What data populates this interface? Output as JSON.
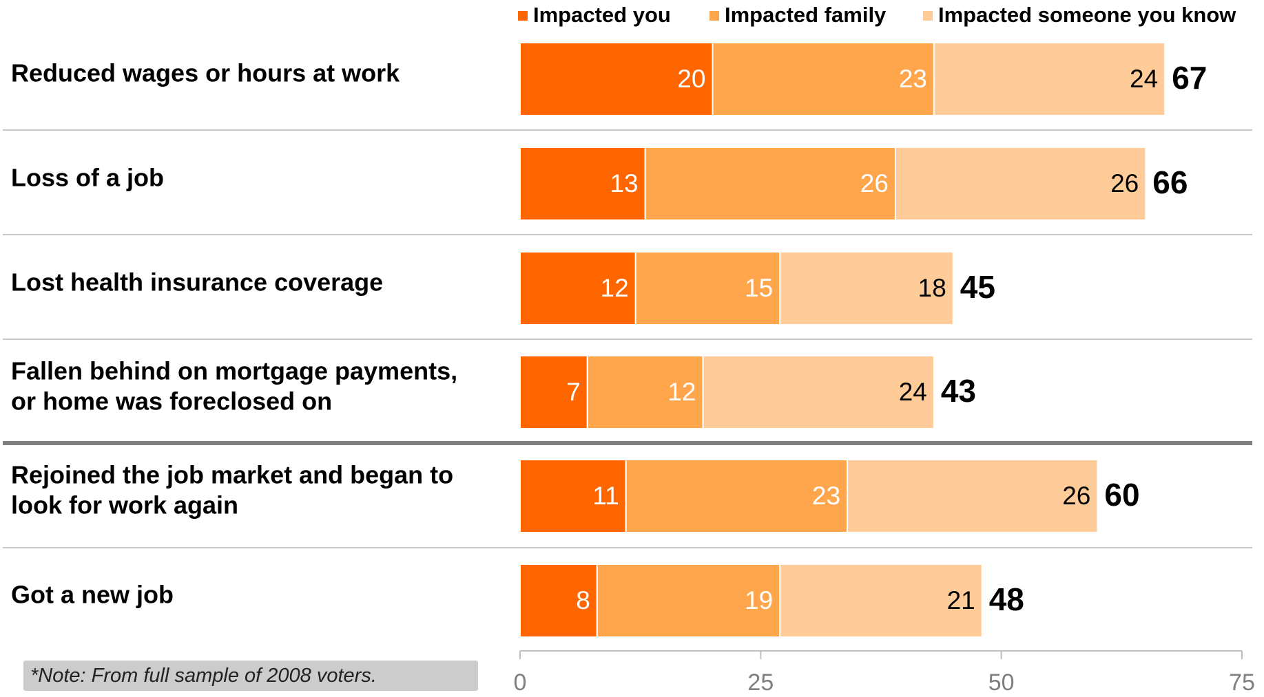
{
  "chart_data": {
    "type": "bar",
    "orientation": "horizontal",
    "stacked": true,
    "categories": [
      "Reduced wages or hours at work",
      "Loss of a job",
      "Lost health insurance coverage",
      "Fallen behind on mortgage payments, or home was foreclosed on",
      "Rejoined the job market and began to look for work again",
      "Got a new job"
    ],
    "category_lines": [
      [
        "Reduced wages or hours at work"
      ],
      [
        "Loss of a job"
      ],
      [
        "Lost health insurance coverage"
      ],
      [
        "Fallen behind on mortgage payments,",
        "or home was foreclosed on"
      ],
      [
        "Rejoined the job market and began to",
        "look for work again"
      ],
      [
        "Got a new job"
      ]
    ],
    "series": [
      {
        "name": "Impacted you",
        "color": "#ff6600",
        "values": [
          20,
          13,
          12,
          7,
          11,
          8
        ]
      },
      {
        "name": "Impacted family",
        "color": "#ffa64d",
        "values": [
          23,
          26,
          15,
          12,
          23,
          19
        ]
      },
      {
        "name": "Impacted someone you know",
        "color": "#ffcc99",
        "values": [
          24,
          26,
          18,
          24,
          26,
          21
        ]
      }
    ],
    "segment_labels": [
      [
        "20",
        "23",
        "24"
      ],
      [
        "13",
        "26",
        "26"
      ],
      [
        "12",
        "15",
        "18"
      ],
      [
        "7",
        "12",
        "24"
      ],
      [
        "11",
        "23",
        "26"
      ],
      [
        "8",
        "19",
        "21"
      ]
    ],
    "totals": [
      67,
      66,
      45,
      43,
      60,
      48
    ],
    "xlim": [
      0,
      75
    ],
    "xticks": [
      0,
      25,
      50,
      75
    ],
    "xticklabels": [
      "0",
      "25",
      "50",
      "75"
    ],
    "legend_position": "top-right",
    "grid": false,
    "group_separator_after_index": 3,
    "label_color_dark": "#000000",
    "label_color_light": "#ffffff",
    "separator_color": "#c8c8c8",
    "group_separator_color": "#808080",
    "axis_color": "#c0c0c0",
    "tick_label_color": "#7f7f7f"
  },
  "note": {
    "text": "*Note: From full sample of 2008 voters."
  }
}
